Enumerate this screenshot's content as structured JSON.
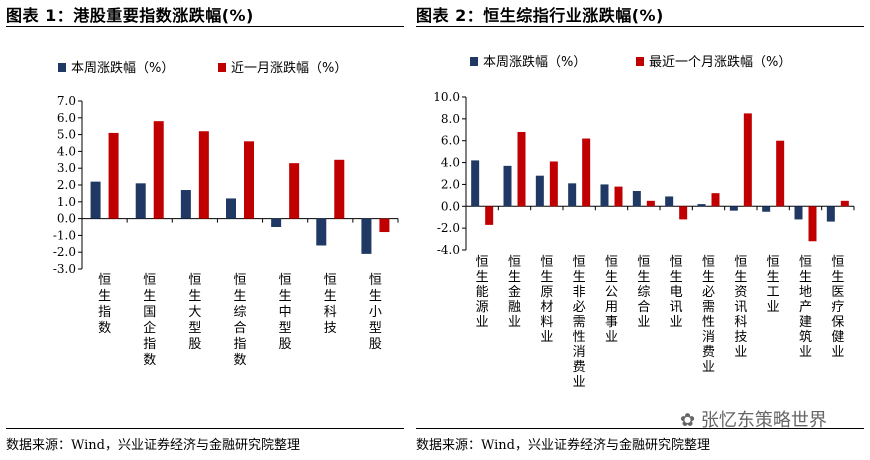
{
  "left": {
    "title": "图表 1：港股重要指数涨跌幅(%)",
    "source": "数据来源：Wind，兴业证券经济与金融研究院整理"
  },
  "right": {
    "title": "图表 2：恒生综指行业涨跌幅(%)",
    "source": "数据来源：Wind，兴业证券经济与金融研究院整理"
  },
  "watermark": "张忆东策略世界",
  "colors": {
    "week": "#1f3864",
    "month": "#c00000"
  },
  "chart_data": [
    {
      "type": "bar",
      "title": "",
      "categories": [
        "恒生指数",
        "恒生国企指数",
        "恒生大型股",
        "恒生综合指数",
        "恒生中型股",
        "恒生科技",
        "恒生小型股"
      ],
      "series": [
        {
          "name": "本周涨跌幅（%）",
          "values": [
            2.2,
            2.1,
            1.7,
            1.2,
            -0.5,
            -1.6,
            -2.1
          ]
        },
        {
          "name": "近一月涨跌幅（%）",
          "values": [
            5.1,
            5.8,
            5.2,
            4.6,
            3.3,
            3.5,
            -0.8
          ]
        }
      ],
      "ylim": [
        -3.0,
        7.0
      ],
      "yticks": [
        "7.0",
        "6.0",
        "5.0",
        "4.0",
        "3.0",
        "2.0",
        "1.0",
        "0.0",
        "-1.0",
        "-2.0",
        "-3.0"
      ],
      "grid": false,
      "legend": "top"
    },
    {
      "type": "bar",
      "title": "",
      "categories": [
        "恒生能源业",
        "恒生金融业",
        "恒生原材料业",
        "恒生非必需性消费业",
        "恒生公用事业",
        "恒生综合业",
        "恒生电讯业",
        "恒生必需性消费业",
        "恒生资讯科技业",
        "恒生工业",
        "恒生地产建筑业",
        "恒生医疗保健业"
      ],
      "series": [
        {
          "name": "本周涨跌幅（%）",
          "values": [
            4.2,
            3.7,
            2.8,
            2.1,
            2.0,
            1.4,
            0.9,
            0.2,
            -0.4,
            -0.5,
            -1.2,
            -1.4
          ]
        },
        {
          "name": "最近一个月涨跌幅（%）",
          "values": [
            -1.7,
            6.8,
            4.1,
            6.2,
            1.8,
            0.5,
            -1.2,
            1.2,
            8.5,
            6.0,
            -3.2,
            0.5
          ]
        }
      ],
      "ylim": [
        -4.0,
        10.0
      ],
      "yticks": [
        "10.0",
        "8.0",
        "6.0",
        "4.0",
        "2.0",
        "0.0",
        "-2.0",
        "-4.0"
      ],
      "grid": false,
      "legend": "top"
    }
  ]
}
